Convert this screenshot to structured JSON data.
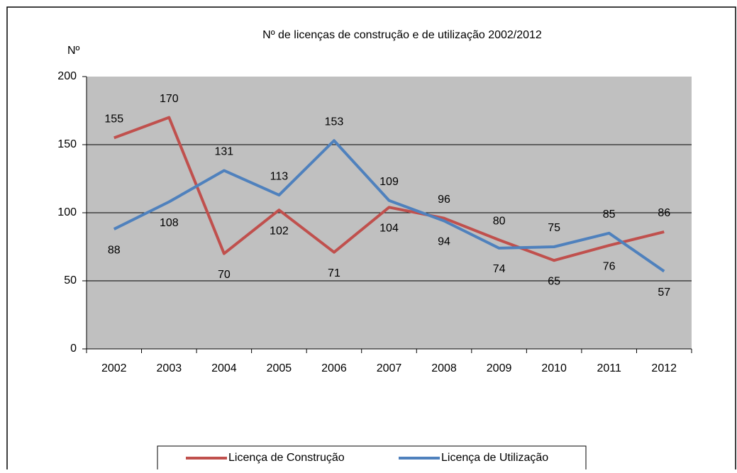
{
  "chart_data": {
    "type": "line",
    "title": "Nº de licenças de construção e de utilização 2002/2012",
    "y_label": "Nº",
    "categories": [
      "2002",
      "2003",
      "2004",
      "2005",
      "2006",
      "2007",
      "2008",
      "2009",
      "2010",
      "2011",
      "2012"
    ],
    "series": [
      {
        "name": "Licença de Construção",
        "color": "#c0504d",
        "values": [
          155,
          170,
          70,
          102,
          71,
          104,
          96,
          80,
          65,
          76,
          86
        ]
      },
      {
        "name": "Licença de Utilização",
        "color": "#4f81bd",
        "values": [
          88,
          108,
          131,
          113,
          153,
          109,
          94,
          74,
          75,
          85,
          57
        ]
      }
    ],
    "ylim": [
      0,
      200
    ],
    "yticks": [
      0,
      50,
      100,
      150,
      200
    ],
    "grid": true,
    "legend": "bottom"
  }
}
